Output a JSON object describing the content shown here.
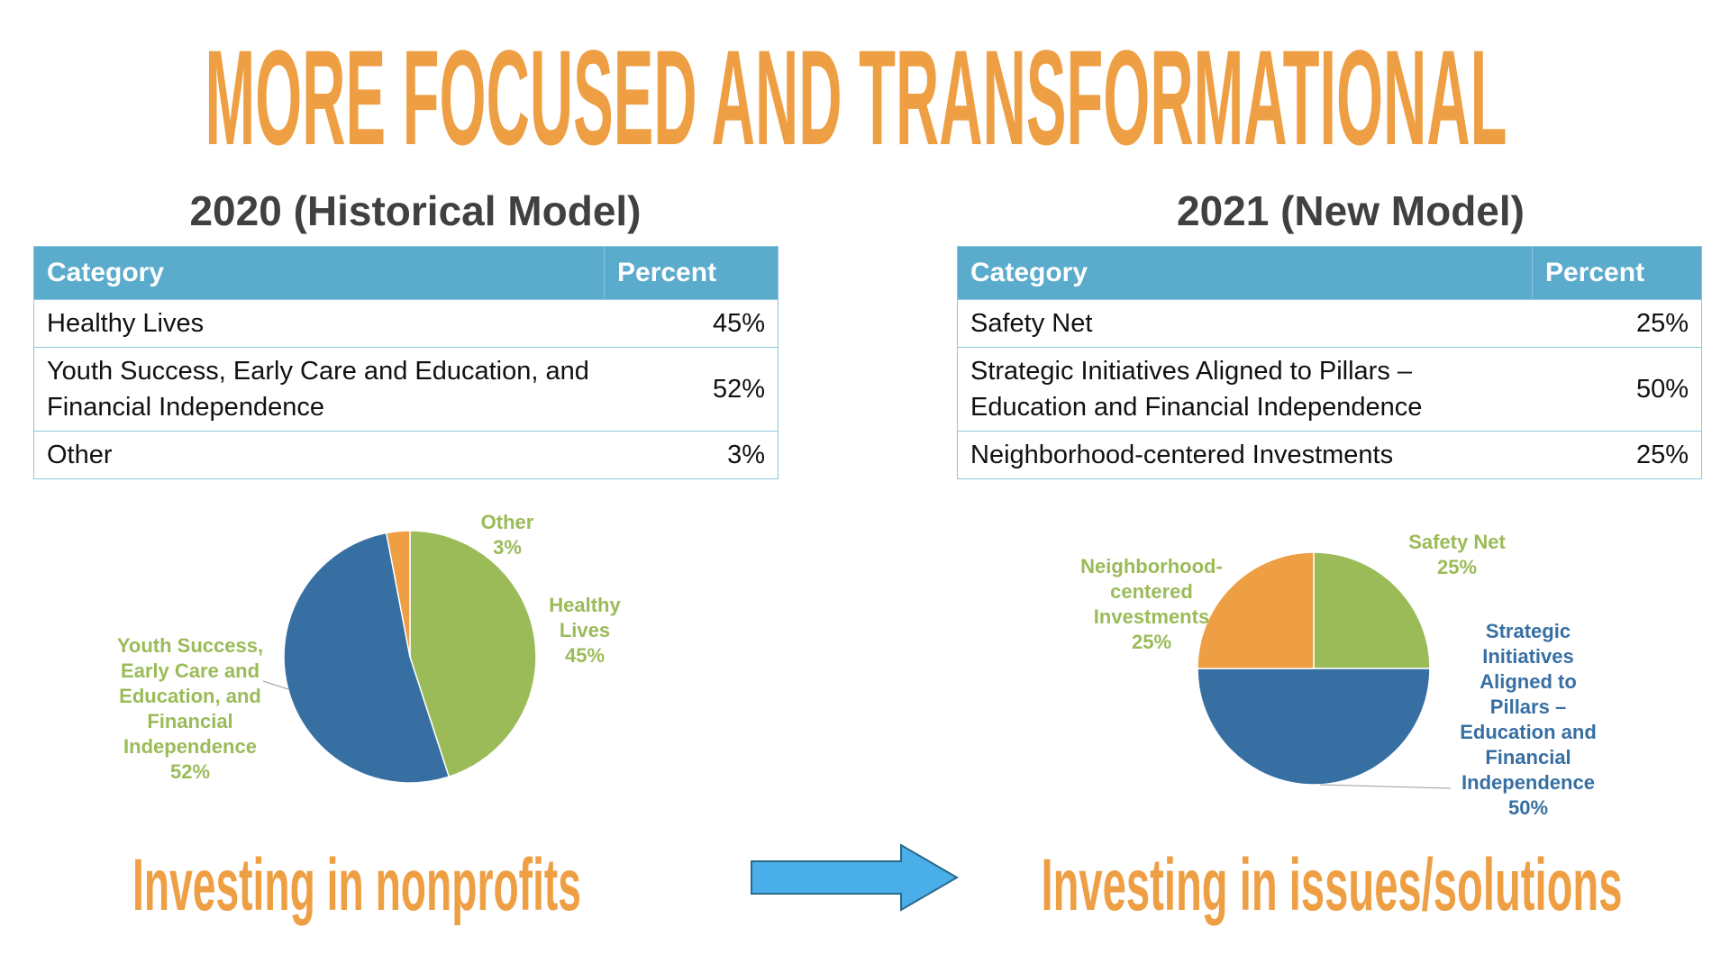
{
  "title": "MORE FOCUSED AND TRANSFORMATIONAL",
  "panels": [
    {
      "heading": "2020 (Historical Model)",
      "table": {
        "columns": [
          "Category",
          "Percent"
        ],
        "rows": [
          [
            "Healthy Lives",
            "45%"
          ],
          [
            "Youth Success, Early Care and Education, and Financial Independence",
            "52%"
          ],
          [
            "Other",
            "3%"
          ]
        ]
      },
      "caption": "Investing in nonprofits"
    },
    {
      "heading": "2021 (New Model)",
      "table": {
        "columns": [
          "Category",
          "Percent"
        ],
        "rows": [
          [
            "Safety Net",
            "25%"
          ],
          [
            "Strategic Initiatives Aligned to Pillars – Education and Financial Independence",
            "50%"
          ],
          [
            "Neighborhood-centered Investments",
            "25%"
          ]
        ]
      },
      "caption": "Investing in issues/solutions"
    }
  ],
  "chart_data": [
    {
      "type": "pie",
      "categories": [
        "Healthy Lives",
        "Youth Success, Early Care and Education, and Financial Independence",
        "Other"
      ],
      "values": [
        45,
        52,
        3
      ],
      "value_labels": [
        "45%",
        "52%",
        "3%"
      ],
      "colors": [
        "#9bbb59",
        "#376fa3",
        "#ee9f44"
      ],
      "label_colors": [
        "#9bbb59",
        "#9bbb59",
        "#9bbb59"
      ]
    },
    {
      "type": "pie",
      "categories": [
        "Safety Net",
        "Strategic Initiatives Aligned to Pillars – Education and Financial Independence",
        "Neighborhood-centered Investments"
      ],
      "values": [
        25,
        50,
        25
      ],
      "value_labels": [
        "25%",
        "50%",
        "25%"
      ],
      "colors": [
        "#9bbb59",
        "#376fa3",
        "#ee9f44"
      ],
      "label_colors": [
        "#9bbb59",
        "#376fa3",
        "#9bbb59"
      ]
    }
  ]
}
